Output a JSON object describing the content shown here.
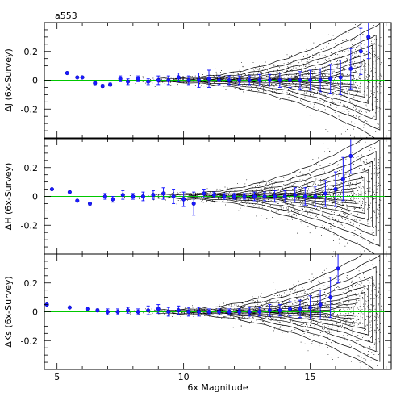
{
  "chart_data": {
    "type": "scatter",
    "title": "a553",
    "xlabel": "6x Magnitude",
    "xlim": [
      4.5,
      18.2
    ],
    "x_ticks": [
      5,
      10,
      15
    ],
    "colors": {
      "zero_line": "#00c800",
      "mean_points": "#1a1aff",
      "contours": "#000000"
    },
    "panels": [
      {
        "id": "J",
        "ylabel": "ΔJ (6x-Survey)",
        "ylim": [
          -0.4,
          0.4
        ],
        "y_ticks": [
          -0.2,
          0,
          0.2
        ],
        "y_tick_labels": [
          "-0.2",
          "0",
          "0.2"
        ],
        "mean_points": [
          {
            "x": 5.4,
            "y": 0.05,
            "err": 0.0
          },
          {
            "x": 5.8,
            "y": 0.02,
            "err": 0.0
          },
          {
            "x": 6.0,
            "y": 0.02,
            "err": 0.0
          },
          {
            "x": 6.5,
            "y": -0.02,
            "err": 0.01
          },
          {
            "x": 6.8,
            "y": -0.04,
            "err": 0.01
          },
          {
            "x": 7.1,
            "y": -0.03,
            "err": 0.01
          },
          {
            "x": 7.5,
            "y": 0.01,
            "err": 0.02
          },
          {
            "x": 7.8,
            "y": -0.01,
            "err": 0.02
          },
          {
            "x": 8.2,
            "y": 0.01,
            "err": 0.02
          },
          {
            "x": 8.6,
            "y": -0.01,
            "err": 0.02
          },
          {
            "x": 9.0,
            "y": 0.0,
            "err": 0.03
          },
          {
            "x": 9.4,
            "y": 0.0,
            "err": 0.03
          },
          {
            "x": 9.8,
            "y": 0.02,
            "err": 0.03
          },
          {
            "x": 10.2,
            "y": 0.0,
            "err": 0.03
          },
          {
            "x": 10.6,
            "y": 0.0,
            "err": 0.05
          },
          {
            "x": 11.0,
            "y": 0.01,
            "err": 0.06
          },
          {
            "x": 11.4,
            "y": 0.0,
            "err": 0.03
          },
          {
            "x": 11.8,
            "y": 0.0,
            "err": 0.03
          },
          {
            "x": 12.2,
            "y": 0.0,
            "err": 0.03
          },
          {
            "x": 12.6,
            "y": 0.0,
            "err": 0.03
          },
          {
            "x": 13.0,
            "y": 0.0,
            "err": 0.04
          },
          {
            "x": 13.4,
            "y": 0.0,
            "err": 0.04
          },
          {
            "x": 13.8,
            "y": 0.0,
            "err": 0.05
          },
          {
            "x": 14.2,
            "y": 0.0,
            "err": 0.05
          },
          {
            "x": 14.6,
            "y": 0.0,
            "err": 0.06
          },
          {
            "x": 15.0,
            "y": 0.0,
            "err": 0.07
          },
          {
            "x": 15.4,
            "y": 0.0,
            "err": 0.08
          },
          {
            "x": 15.8,
            "y": 0.01,
            "err": 0.1
          },
          {
            "x": 16.2,
            "y": 0.02,
            "err": 0.12
          },
          {
            "x": 16.6,
            "y": 0.08,
            "err": 0.14
          },
          {
            "x": 17.0,
            "y": 0.2,
            "err": 0.16
          },
          {
            "x": 17.3,
            "y": 0.3,
            "err": 0.15
          }
        ]
      },
      {
        "id": "H",
        "ylabel": "ΔH (6x-Survey)",
        "ylim": [
          -0.4,
          0.4
        ],
        "y_ticks": [
          -0.2,
          0,
          0.2
        ],
        "y_tick_labels": [
          "-0.2",
          "0",
          "0.2"
        ],
        "mean_points": [
          {
            "x": 4.8,
            "y": 0.05,
            "err": 0.0
          },
          {
            "x": 5.5,
            "y": 0.03,
            "err": 0.0
          },
          {
            "x": 5.8,
            "y": -0.03,
            "err": 0.0
          },
          {
            "x": 6.3,
            "y": -0.05,
            "err": 0.01
          },
          {
            "x": 6.9,
            "y": 0.0,
            "err": 0.02
          },
          {
            "x": 7.2,
            "y": -0.02,
            "err": 0.02
          },
          {
            "x": 7.6,
            "y": 0.01,
            "err": 0.03
          },
          {
            "x": 8.0,
            "y": 0.0,
            "err": 0.02
          },
          {
            "x": 8.4,
            "y": 0.0,
            "err": 0.03
          },
          {
            "x": 8.8,
            "y": 0.01,
            "err": 0.03
          },
          {
            "x": 9.2,
            "y": 0.02,
            "err": 0.04
          },
          {
            "x": 9.6,
            "y": 0.0,
            "err": 0.05
          },
          {
            "x": 10.0,
            "y": -0.02,
            "err": 0.05
          },
          {
            "x": 10.4,
            "y": -0.05,
            "err": 0.08
          },
          {
            "x": 10.8,
            "y": 0.02,
            "err": 0.03
          },
          {
            "x": 11.2,
            "y": 0.01,
            "err": 0.02
          },
          {
            "x": 11.6,
            "y": 0.0,
            "err": 0.02
          },
          {
            "x": 12.0,
            "y": 0.0,
            "err": 0.02
          },
          {
            "x": 12.4,
            "y": 0.0,
            "err": 0.02
          },
          {
            "x": 12.8,
            "y": 0.0,
            "err": 0.03
          },
          {
            "x": 13.2,
            "y": 0.0,
            "err": 0.03
          },
          {
            "x": 13.6,
            "y": 0.0,
            "err": 0.04
          },
          {
            "x": 14.0,
            "y": 0.0,
            "err": 0.04
          },
          {
            "x": 14.4,
            "y": 0.01,
            "err": 0.05
          },
          {
            "x": 14.8,
            "y": 0.0,
            "err": 0.06
          },
          {
            "x": 15.2,
            "y": 0.0,
            "err": 0.07
          },
          {
            "x": 15.6,
            "y": 0.02,
            "err": 0.09
          },
          {
            "x": 16.0,
            "y": 0.05,
            "err": 0.12
          },
          {
            "x": 16.3,
            "y": 0.12,
            "err": 0.15
          },
          {
            "x": 16.6,
            "y": 0.28,
            "err": 0.12
          }
        ]
      },
      {
        "id": "Ks",
        "ylabel": "ΔKs (6x-Survey)",
        "ylim": [
          -0.4,
          0.4
        ],
        "y_ticks": [
          -0.2,
          0,
          0.2
        ],
        "y_tick_labels": [
          "-0.2",
          "0",
          "0.2"
        ],
        "mean_points": [
          {
            "x": 4.6,
            "y": 0.05,
            "err": 0.0
          },
          {
            "x": 5.5,
            "y": 0.03,
            "err": 0.0
          },
          {
            "x": 6.2,
            "y": 0.02,
            "err": 0.0
          },
          {
            "x": 6.6,
            "y": 0.01,
            "err": 0.01
          },
          {
            "x": 7.0,
            "y": 0.0,
            "err": 0.02
          },
          {
            "x": 7.4,
            "y": 0.0,
            "err": 0.02
          },
          {
            "x": 7.8,
            "y": 0.01,
            "err": 0.02
          },
          {
            "x": 8.2,
            "y": 0.0,
            "err": 0.02
          },
          {
            "x": 8.6,
            "y": 0.01,
            "err": 0.03
          },
          {
            "x": 9.0,
            "y": 0.02,
            "err": 0.03
          },
          {
            "x": 9.4,
            "y": 0.0,
            "err": 0.03
          },
          {
            "x": 9.8,
            "y": 0.01,
            "err": 0.03
          },
          {
            "x": 10.2,
            "y": 0.0,
            "err": 0.03
          },
          {
            "x": 10.6,
            "y": 0.0,
            "err": 0.03
          },
          {
            "x": 11.0,
            "y": 0.0,
            "err": 0.02
          },
          {
            "x": 11.4,
            "y": 0.0,
            "err": 0.02
          },
          {
            "x": 11.8,
            "y": 0.0,
            "err": 0.02
          },
          {
            "x": 12.2,
            "y": 0.0,
            "err": 0.02
          },
          {
            "x": 12.6,
            "y": 0.0,
            "err": 0.03
          },
          {
            "x": 13.0,
            "y": 0.0,
            "err": 0.03
          },
          {
            "x": 13.4,
            "y": 0.01,
            "err": 0.04
          },
          {
            "x": 13.8,
            "y": 0.01,
            "err": 0.04
          },
          {
            "x": 14.2,
            "y": 0.02,
            "err": 0.05
          },
          {
            "x": 14.6,
            "y": 0.02,
            "err": 0.06
          },
          {
            "x": 15.0,
            "y": 0.03,
            "err": 0.08
          },
          {
            "x": 15.4,
            "y": 0.05,
            "err": 0.1
          },
          {
            "x": 15.8,
            "y": 0.1,
            "err": 0.14
          },
          {
            "x": 16.1,
            "y": 0.3,
            "err": 0.1
          }
        ]
      }
    ]
  }
}
